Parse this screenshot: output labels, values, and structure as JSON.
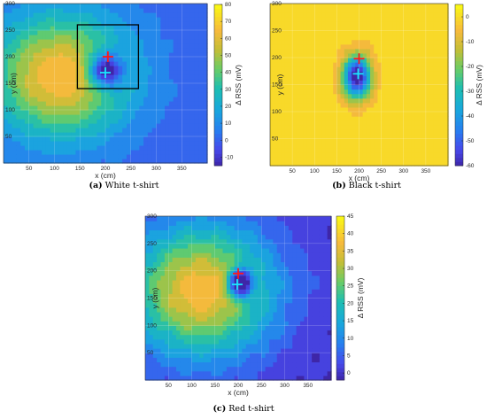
{
  "chart_data": [
    {
      "type": "heatmap",
      "panel_label": "(a)",
      "caption": "White t-shirt",
      "xlabel": "x (cm)",
      "ylabel": "y (cm)",
      "colorbar_label": "Δ RSS (mV)",
      "xlim": [
        0,
        400
      ],
      "ylim": [
        0,
        300
      ],
      "xticks": [
        50,
        100,
        150,
        200,
        250,
        300,
        350
      ],
      "yticks": [
        50,
        100,
        150,
        200,
        250,
        300
      ],
      "clim": [
        -15,
        80
      ],
      "colorbar_ticks": [
        -10,
        0,
        10,
        20,
        30,
        40,
        50,
        60,
        70,
        80
      ],
      "field": {
        "peak": {
          "x": 112,
          "y": 165,
          "value": 68,
          "sx": 95,
          "sy": 80
        },
        "dip": {
          "x": 200,
          "y": 175,
          "value": -60,
          "sx": 24,
          "sy": 24
        }
      },
      "markers": [
        {
          "symbol": "+",
          "x": 205,
          "y": 200,
          "color": "#ff1a1a"
        },
        {
          "symbol": "+",
          "x": 200,
          "y": 170,
          "color": "#19e6ff"
        }
      ],
      "rectangle": {
        "x": [
          145,
          265
        ],
        "y": [
          140,
          260
        ]
      }
    },
    {
      "type": "heatmap",
      "panel_label": "(b)",
      "caption": "Black t-shirt",
      "xlabel": "x (cm)",
      "ylabel": "y (cm)",
      "colorbar_label": "Δ RSS (mV)",
      "xlim": [
        0,
        400
      ],
      "ylim": [
        0,
        300
      ],
      "xticks": [
        50,
        100,
        150,
        200,
        250,
        300,
        350
      ],
      "yticks": [
        50,
        100,
        150,
        200,
        250,
        300
      ],
      "clim": [
        -60,
        5
      ],
      "colorbar_ticks": [
        -60,
        -50,
        -40,
        -30,
        -20,
        -10,
        0
      ],
      "field": {
        "background": 0,
        "dip": {
          "x": 195,
          "y": 165,
          "value": -65,
          "sx": 22,
          "sy": 28
        }
      },
      "markers": [
        {
          "symbol": "+",
          "x": 200,
          "y": 198,
          "color": "#ff1a1a"
        },
        {
          "symbol": "+",
          "x": 198,
          "y": 170,
          "color": "#19e6ff"
        }
      ]
    },
    {
      "type": "heatmap",
      "panel_label": "(c)",
      "caption": "Red t-shirt",
      "xlabel": "x (cm)",
      "ylabel": "y (cm)",
      "colorbar_label": "Δ RSS (mV)",
      "xlim": [
        0,
        400
      ],
      "ylim": [
        0,
        300
      ],
      "xticks": [
        50,
        100,
        150,
        200,
        250,
        300,
        350
      ],
      "yticks": [
        50,
        100,
        150,
        200,
        250,
        300
      ],
      "clim": [
        -2,
        45
      ],
      "colorbar_ticks": [
        0,
        5,
        10,
        15,
        20,
        25,
        30,
        35,
        40,
        45
      ],
      "field": {
        "peak": {
          "x": 120,
          "y": 165,
          "value": 38,
          "sx": 110,
          "sy": 85
        },
        "dip": {
          "x": 205,
          "y": 178,
          "value": -40,
          "sx": 18,
          "sy": 18
        }
      },
      "markers": [
        {
          "symbol": "+",
          "x": 200,
          "y": 195,
          "color": "#ff1a1a"
        },
        {
          "symbol": "+",
          "x": 198,
          "y": 175,
          "color": "#19e6ff"
        }
      ]
    }
  ]
}
